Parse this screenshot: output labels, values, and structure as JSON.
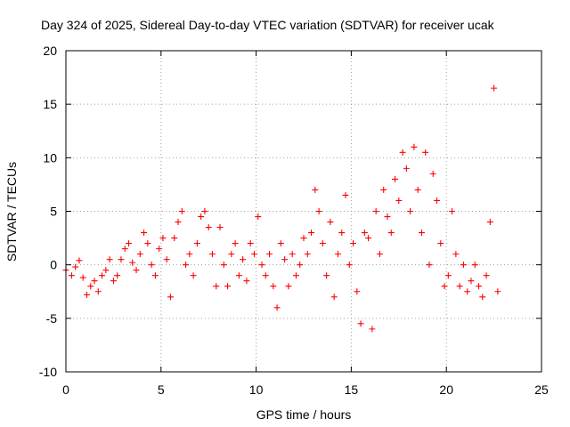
{
  "chart_data": {
    "type": "scatter",
    "title": "Day 324 of 2025, Sidereal Day-to-day VTEC variation (SDTVAR) for receiver ucak",
    "xlabel": "GPS time / hours",
    "ylabel": "SDTVAR / TECUs",
    "xlim": [
      0,
      25
    ],
    "ylim": [
      -10,
      20
    ],
    "xticks": [
      0,
      5,
      10,
      15,
      20,
      25
    ],
    "yticks": [
      -10,
      -5,
      0,
      5,
      10,
      15,
      20
    ],
    "xtick_labels": [
      "0",
      "5",
      "10",
      "15",
      "20",
      "25"
    ],
    "ytick_labels": [
      "-10",
      "-5",
      "0",
      "5",
      "10",
      "15",
      "20"
    ],
    "grid": true,
    "marker": "+",
    "series_color": "#ff0000",
    "series": [
      {
        "name": "SDTVAR",
        "x": [
          0.0,
          0.3,
          0.5,
          0.7,
          0.9,
          1.1,
          1.3,
          1.5,
          1.7,
          1.9,
          2.1,
          2.3,
          2.5,
          2.7,
          2.9,
          3.1,
          3.3,
          3.5,
          3.7,
          3.9,
          4.1,
          4.3,
          4.5,
          4.7,
          4.9,
          5.1,
          5.3,
          5.5,
          5.7,
          5.9,
          6.1,
          6.3,
          6.5,
          6.7,
          6.9,
          7.1,
          7.3,
          7.5,
          7.7,
          7.9,
          8.1,
          8.3,
          8.5,
          8.7,
          8.9,
          9.1,
          9.3,
          9.5,
          9.7,
          9.9,
          10.1,
          10.3,
          10.5,
          10.7,
          10.9,
          11.1,
          11.3,
          11.5,
          11.7,
          11.9,
          12.1,
          12.3,
          12.5,
          12.7,
          12.9,
          13.1,
          13.3,
          13.5,
          13.7,
          13.9,
          14.1,
          14.3,
          14.5,
          14.7,
          14.9,
          15.1,
          15.3,
          15.5,
          15.7,
          15.9,
          16.1,
          16.3,
          16.5,
          16.7,
          16.9,
          17.1,
          17.3,
          17.5,
          17.7,
          17.9,
          18.1,
          18.3,
          18.5,
          18.7,
          18.9,
          19.1,
          19.3,
          19.5,
          19.7,
          19.9,
          20.1,
          20.3,
          20.5,
          20.7,
          20.9,
          21.1,
          21.3,
          21.5,
          21.7,
          21.9,
          22.1,
          22.3,
          22.5,
          22.7
        ],
        "y": [
          -0.5,
          -1.0,
          -0.2,
          0.4,
          -1.2,
          -2.8,
          -2.0,
          -1.5,
          -2.5,
          -1.0,
          -0.5,
          0.5,
          -1.5,
          -1.0,
          0.5,
          1.5,
          2.0,
          0.2,
          -0.5,
          1.0,
          3.0,
          2.0,
          0.0,
          -1.0,
          1.5,
          2.5,
          0.5,
          -3.0,
          2.5,
          4.0,
          5.0,
          0.0,
          1.0,
          -1.0,
          2.0,
          4.5,
          5.0,
          3.5,
          1.0,
          -2.0,
          3.5,
          0.0,
          -2.0,
          1.0,
          2.0,
          -1.0,
          0.5,
          -1.5,
          2.0,
          1.0,
          4.5,
          0.0,
          -1.0,
          1.0,
          -2.0,
          -4.0,
          2.0,
          0.5,
          -2.0,
          1.0,
          -1.0,
          0.0,
          2.5,
          1.0,
          3.0,
          7.0,
          5.0,
          2.0,
          -1.0,
          4.0,
          -3.0,
          1.0,
          3.0,
          6.5,
          0.0,
          2.0,
          -2.5,
          -5.5,
          3.0,
          2.5,
          -6.0,
          5.0,
          1.0,
          7.0,
          4.5,
          3.0,
          8.0,
          6.0,
          10.5,
          9.0,
          5.0,
          11.0,
          7.0,
          3.0,
          10.5,
          0.0,
          8.5,
          6.0,
          2.0,
          -2.0,
          -1.0,
          5.0,
          1.0,
          -2.0,
          0.0,
          -2.5,
          -1.5,
          0.0,
          -2.0,
          -3.0,
          -1.0,
          4.0,
          16.5,
          -2.5
        ]
      }
    ]
  }
}
